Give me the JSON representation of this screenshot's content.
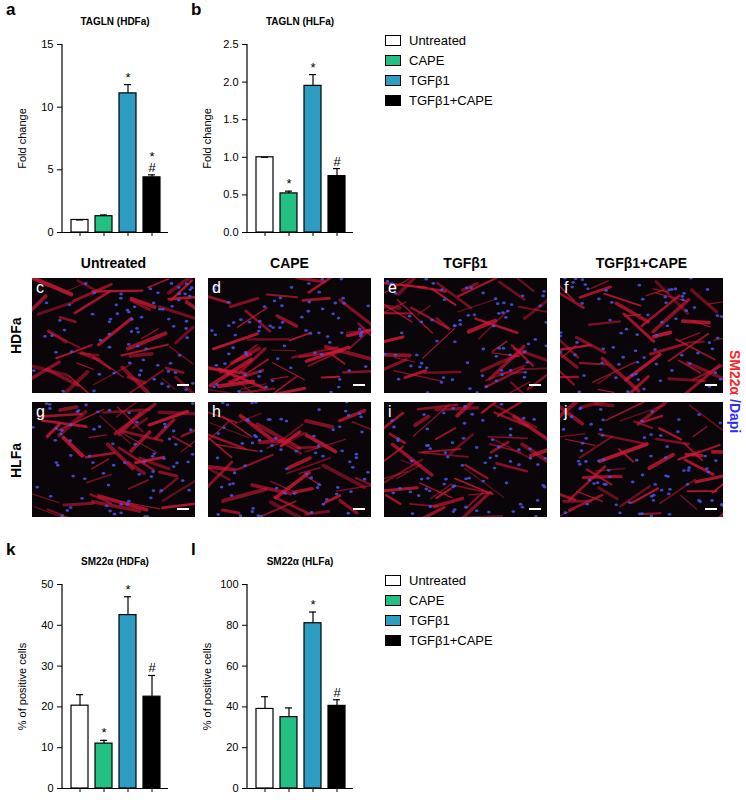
{
  "chart_data": [
    {
      "panel": "a",
      "type": "bar",
      "title": "TAGLN (HDFa)",
      "y_label": "Fold change",
      "categories": [
        "Untreated",
        "CAPE",
        "TGFβ1",
        "TGFβ1+CAPE"
      ],
      "colors": [
        "#ffffff",
        "#22c083",
        "#2e9dc2",
        "#000000"
      ],
      "values": [
        1,
        1.3,
        11.1,
        4.4
      ],
      "errors": [
        0,
        0.1,
        0.7,
        0.2
      ],
      "annotations": [
        {
          "category": "TGFβ1",
          "lines": [
            "*"
          ]
        },
        {
          "category": "TGFβ1+CAPE",
          "lines": [
            "*",
            "#"
          ]
        }
      ],
      "ylim": [
        0,
        15
      ],
      "yticks": [
        0,
        5,
        10,
        15
      ],
      "tick_labels": "y"
    },
    {
      "panel": "b",
      "type": "bar",
      "title": "TAGLN (HLFa)",
      "y_label": "Fold change",
      "categories": [
        "Untreated",
        "CAPE",
        "TGFβ1",
        "TGFβ1+CAPE"
      ],
      "colors": [
        "#ffffff",
        "#22c083",
        "#2e9dc2",
        "#000000"
      ],
      "values": [
        1,
        0.52,
        1.95,
        0.75
      ],
      "errors": [
        0,
        0.03,
        0.15,
        0.1
      ],
      "annotations": [
        {
          "category": "CAPE",
          "lines": [
            "*"
          ]
        },
        {
          "category": "TGFβ1",
          "lines": [
            "*"
          ]
        },
        {
          "category": "TGFβ1+CAPE",
          "lines": [
            "#"
          ]
        }
      ],
      "ylim": [
        0,
        2.5
      ],
      "yticks": [
        {
          "value": 0,
          "label": "0.0"
        },
        0.5,
        {
          "value": 1,
          "label": "1.0"
        },
        1.5,
        {
          "value": 2,
          "label": "2.0"
        },
        2.5
      ],
      "tick_labels": "y",
      "legend": "right"
    },
    {
      "panel": "k",
      "type": "bar",
      "title": "SM22α (HDFa)",
      "y_label": "% of positive cells",
      "categories": [
        "Untreated",
        "CAPE",
        "TGFβ1",
        "TGFβ1+CAPE"
      ],
      "colors": [
        "#ffffff",
        "#22c083",
        "#2e9dc2",
        "#000000"
      ],
      "values": [
        20.3,
        11,
        42.5,
        22.5
      ],
      "errors": [
        2.7,
        0.8,
        4.5,
        5.2
      ],
      "annotations": [
        {
          "category": "CAPE",
          "lines": [
            "*"
          ]
        },
        {
          "category": "TGFβ1",
          "lines": [
            "*"
          ]
        },
        {
          "category": "TGFβ1+CAPE",
          "lines": [
            "#"
          ]
        }
      ],
      "ylim": [
        0,
        50
      ],
      "yticks": [
        0,
        10,
        20,
        30,
        40,
        50
      ],
      "tick_labels": "y"
    },
    {
      "panel": "l",
      "type": "bar",
      "title": "SM22α (HLFa)",
      "y_label": "% of positive cells",
      "categories": [
        "Untreated",
        "CAPE",
        "TGFβ1",
        "TGFβ1+CAPE"
      ],
      "colors": [
        "#ffffff",
        "#22c083",
        "#2e9dc2",
        "#000000"
      ],
      "values": [
        39,
        35,
        81,
        40.5
      ],
      "errors": [
        6,
        4.5,
        5.5,
        3
      ],
      "annotations": [
        {
          "category": "TGFβ1",
          "lines": [
            "*"
          ]
        },
        {
          "category": "TGFβ1+CAPE",
          "lines": [
            "#"
          ]
        }
      ],
      "ylim": [
        0,
        100
      ],
      "yticks": [
        0,
        20,
        40,
        60,
        80,
        100
      ],
      "tick_labels": "y",
      "legend": "right"
    }
  ],
  "image_panels": {
    "columns": [
      "Untreated",
      "CAPE",
      "TGFβ1",
      "TGFβ1+CAPE"
    ],
    "rows": [
      {
        "label": "HDFa",
        "panels": [
          "c",
          "d",
          "e",
          "f"
        ]
      },
      {
        "label": "HLFa",
        "panels": [
          "g",
          "h",
          "i",
          "j"
        ]
      }
    ],
    "stain": [
      {
        "text": "SM22α",
        "color": "#ff2222"
      },
      {
        "text": "/Dapi",
        "color": "#2b2bff"
      }
    ]
  }
}
